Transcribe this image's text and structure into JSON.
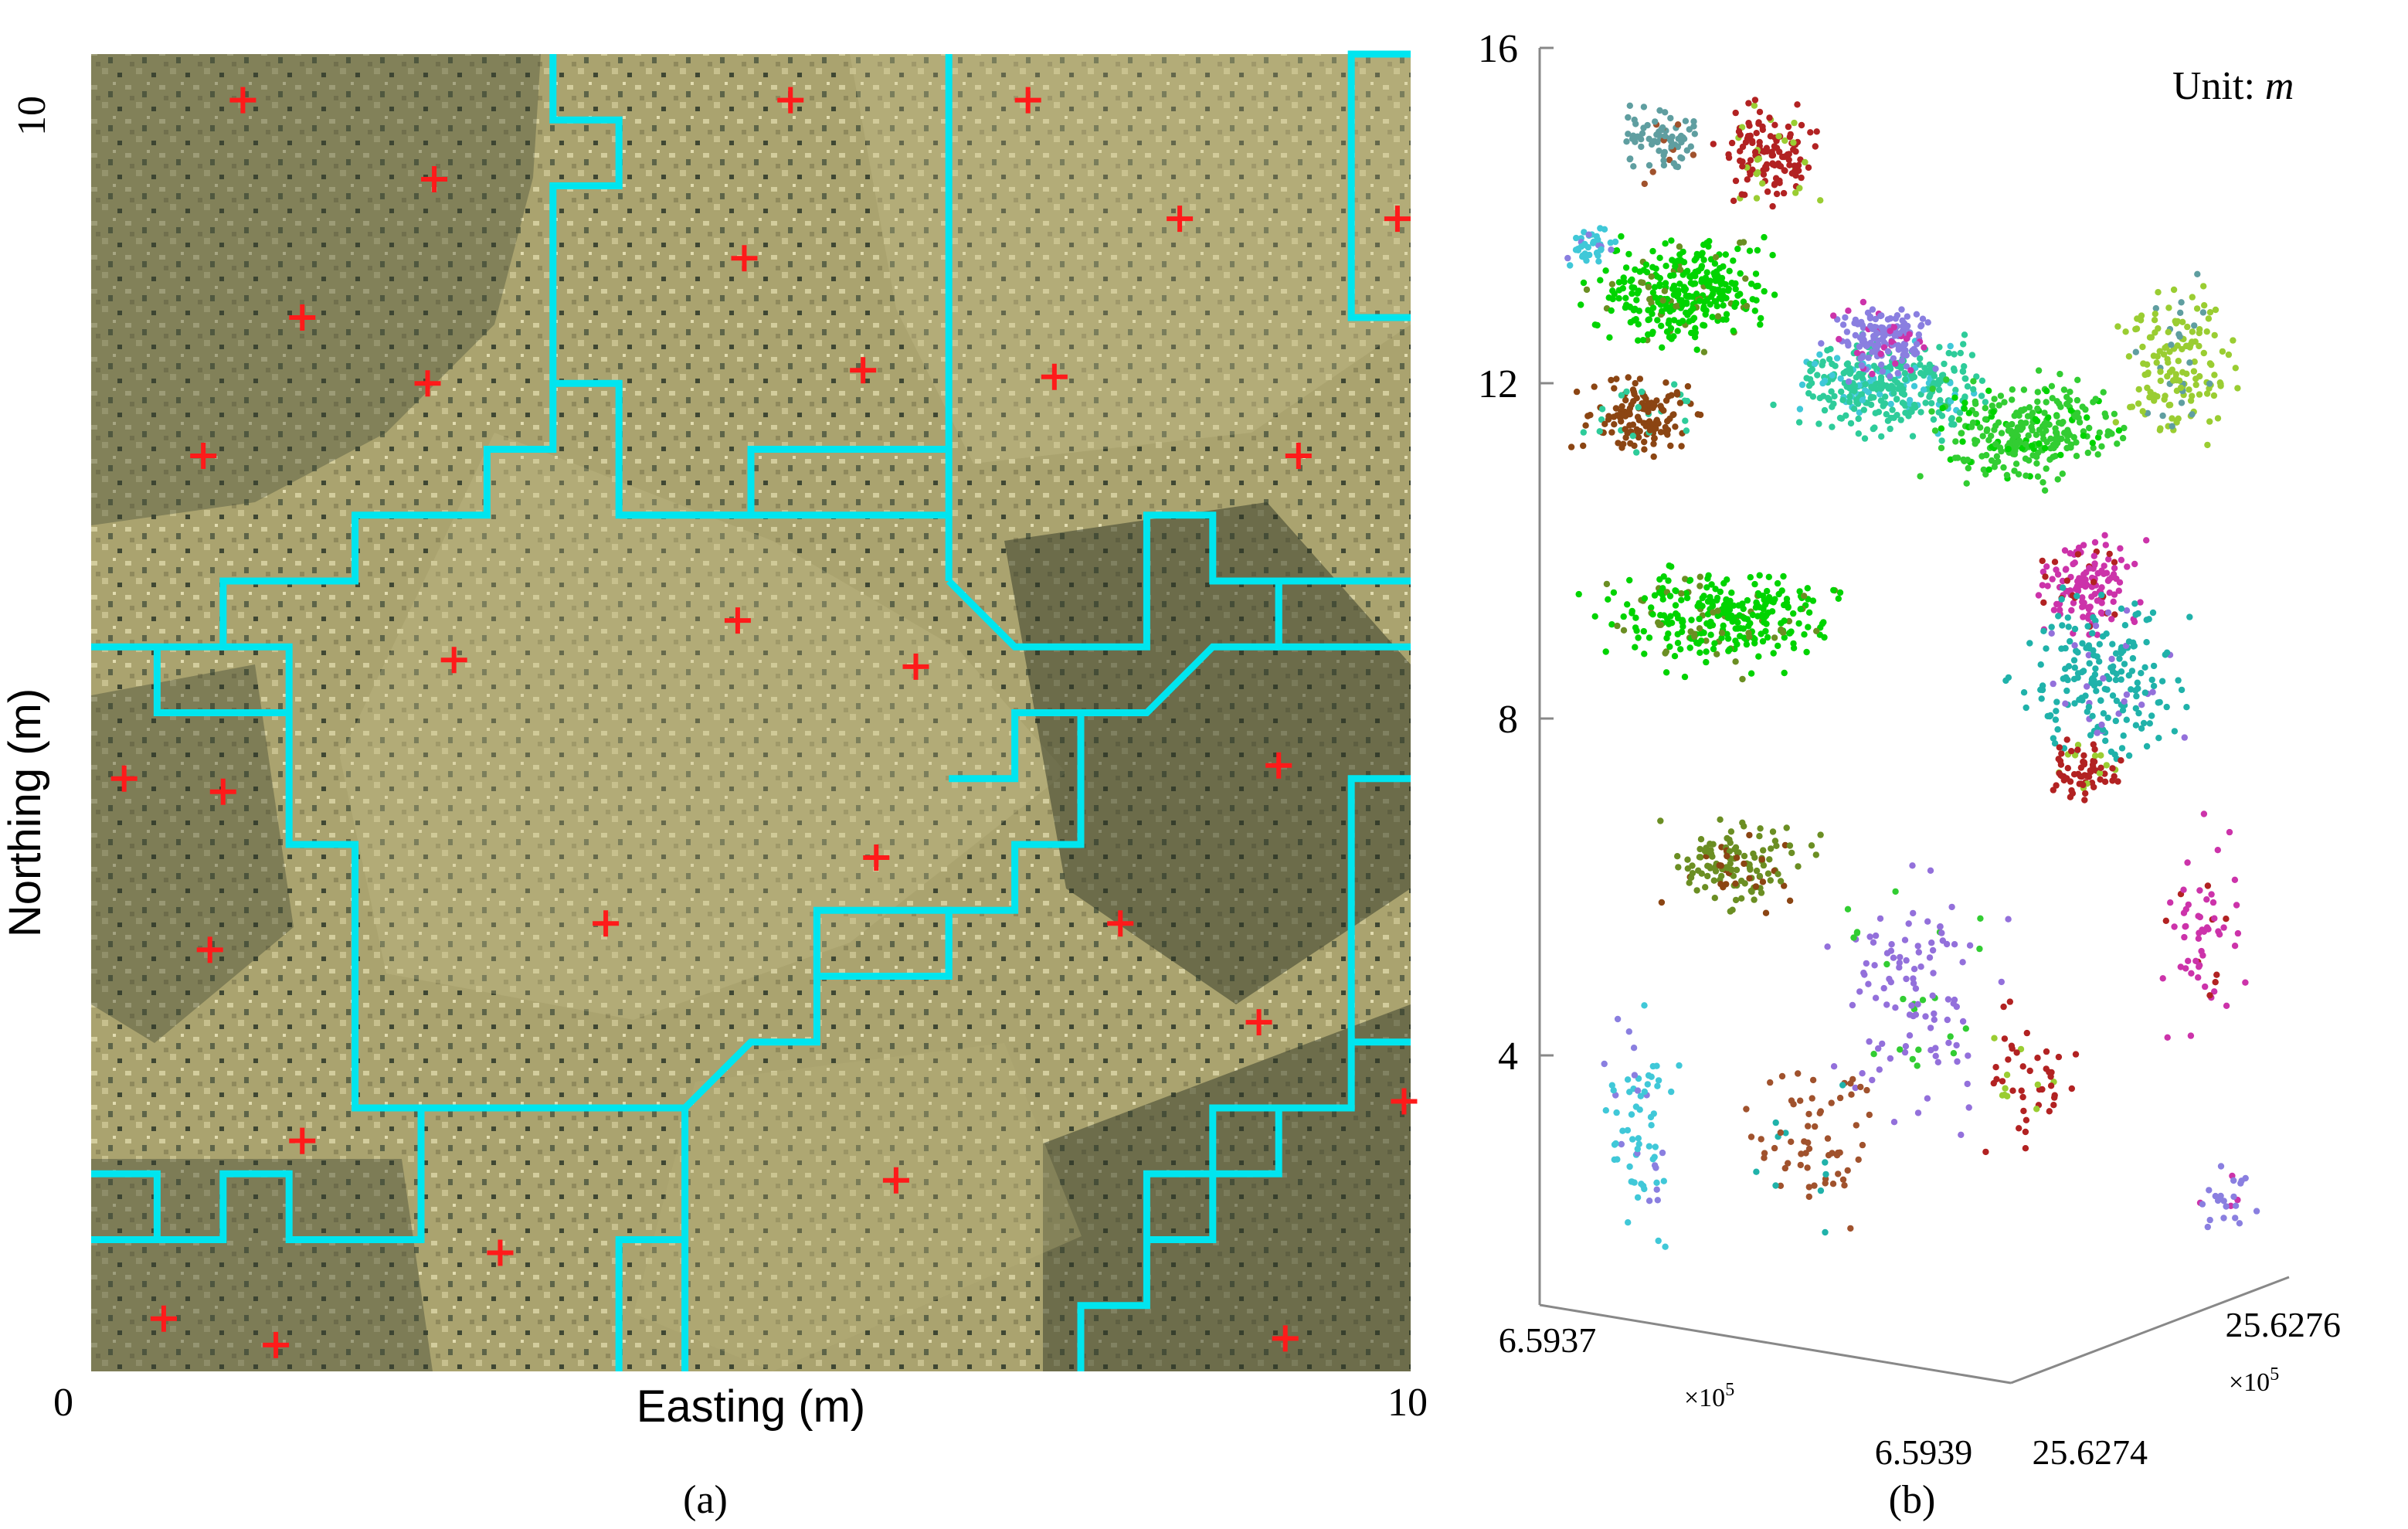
{
  "panel_a": {
    "caption": "(a)",
    "xlabel": "Easting (m)",
    "ylabel": "Northing (m)",
    "x_tick_min": "0",
    "x_tick_max": "10",
    "y_tick_max": "10",
    "marker_color": "#ff1a1a",
    "boundary_color": "#00e5ef",
    "tree_tops": [
      [
        1.15,
        9.65
      ],
      [
        5.3,
        9.65
      ],
      [
        7.1,
        9.65
      ],
      [
        2.6,
        9.05
      ],
      [
        8.25,
        8.75
      ],
      [
        9.9,
        8.75
      ],
      [
        4.95,
        8.45
      ],
      [
        1.6,
        8.0
      ],
      [
        5.85,
        7.6
      ],
      [
        7.3,
        7.55
      ],
      [
        2.55,
        7.5
      ],
      [
        0.85,
        6.95
      ],
      [
        9.15,
        6.95
      ],
      [
        4.9,
        5.7
      ],
      [
        2.75,
        5.4
      ],
      [
        6.25,
        5.35
      ],
      [
        0.25,
        4.5
      ],
      [
        1.0,
        4.4
      ],
      [
        9.0,
        4.6
      ],
      [
        5.95,
        3.9
      ],
      [
        3.9,
        3.4
      ],
      [
        7.8,
        3.4
      ],
      [
        0.9,
        3.2
      ],
      [
        8.85,
        2.65
      ],
      [
        9.95,
        2.05
      ],
      [
        1.6,
        1.75
      ],
      [
        6.1,
        1.45
      ],
      [
        3.1,
        0.9
      ],
      [
        0.55,
        0.4
      ],
      [
        1.4,
        0.2
      ],
      [
        9.05,
        0.25
      ]
    ],
    "segments": [
      [
        [
          3.5,
          10
        ],
        [
          3.5,
          9.5
        ],
        [
          4.0,
          9.5
        ],
        [
          4.0,
          9.0
        ],
        [
          3.5,
          9.0
        ],
        [
          3.5,
          7.5
        ],
        [
          4.0,
          7.5
        ],
        [
          4.0,
          6.5
        ],
        [
          6.5,
          6.5
        ]
      ],
      [
        [
          6.5,
          10
        ],
        [
          6.5,
          9.0
        ],
        [
          6.5,
          6.0
        ]
      ],
      [
        [
          5.0,
          6.5
        ],
        [
          5.0,
          7.0
        ],
        [
          6.5,
          7.0
        ]
      ],
      [
        [
          3.5,
          7.5
        ],
        [
          3.5,
          7.0
        ],
        [
          3.0,
          7.0
        ],
        [
          3.0,
          6.5
        ],
        [
          2.0,
          6.5
        ],
        [
          2.0,
          6.0
        ],
        [
          1.0,
          6.0
        ],
        [
          1.0,
          5.5
        ],
        [
          0,
          5.5
        ]
      ],
      [
        [
          1.0,
          5.5
        ],
        [
          1.5,
          5.5
        ],
        [
          1.5,
          4.0
        ],
        [
          2.0,
          4.0
        ],
        [
          2.0,
          2.0
        ],
        [
          4.5,
          2.0
        ],
        [
          5.0,
          2.5
        ],
        [
          5.5,
          2.5
        ],
        [
          5.5,
          3.5
        ],
        [
          6.5,
          3.5
        ],
        [
          6.5,
          3.0
        ],
        [
          5.5,
          3.0
        ]
      ],
      [
        [
          0.5,
          5.5
        ],
        [
          0.5,
          5.0
        ],
        [
          1.5,
          5.0
        ]
      ],
      [
        [
          10,
          10
        ],
        [
          9.55,
          10
        ],
        [
          9.55,
          8.0
        ],
        [
          10,
          8.0
        ]
      ],
      [
        [
          6.5,
          6.0
        ],
        [
          7.0,
          5.5
        ],
        [
          8.0,
          5.5
        ],
        [
          8.0,
          6.5
        ],
        [
          8.5,
          6.5
        ],
        [
          8.5,
          6.0
        ],
        [
          9.0,
          6.0
        ],
        [
          9.0,
          5.5
        ],
        [
          10,
          5.5
        ]
      ],
      [
        [
          9.0,
          5.5
        ],
        [
          9.0,
          6.0
        ],
        [
          10,
          6.0
        ]
      ],
      [
        [
          5.5,
          3.5
        ],
        [
          5.5,
          3.0
        ],
        [
          6.5,
          3.0
        ],
        [
          6.5,
          3.5
        ],
        [
          7.0,
          3.5
        ],
        [
          7.0,
          4.0
        ],
        [
          7.5,
          4.0
        ],
        [
          7.5,
          4.5
        ],
        [
          7.5,
          5.0
        ],
        [
          8.0,
          5.0
        ],
        [
          8.5,
          5.5
        ],
        [
          9.0,
          5.5
        ]
      ],
      [
        [
          6.5,
          4.5
        ],
        [
          7.0,
          4.5
        ],
        [
          7.0,
          5.0
        ],
        [
          7.5,
          5.0
        ]
      ],
      [
        [
          5.0,
          6.5
        ],
        [
          4.0,
          6.5
        ]
      ],
      [
        [
          0,
          1.5
        ],
        [
          0.5,
          1.5
        ],
        [
          0.5,
          1.0
        ],
        [
          1.0,
          1.0
        ],
        [
          1.0,
          1.5
        ],
        [
          1.5,
          1.5
        ],
        [
          1.5,
          1.0
        ],
        [
          2.5,
          1.0
        ],
        [
          2.5,
          2.0
        ]
      ],
      [
        [
          0.5,
          1.0
        ],
        [
          0,
          1.0
        ]
      ],
      [
        [
          4.5,
          2.0
        ],
        [
          4.5,
          1.0
        ],
        [
          4.0,
          1.0
        ],
        [
          4.0,
          0
        ]
      ],
      [
        [
          4.5,
          1.0
        ],
        [
          4.5,
          0
        ]
      ],
      [
        [
          7.5,
          0
        ],
        [
          7.5,
          0.5
        ],
        [
          8.0,
          0.5
        ],
        [
          8.0,
          1.5
        ],
        [
          8.5,
          1.5
        ],
        [
          8.5,
          2.0
        ],
        [
          9.0,
          2.0
        ],
        [
          9.0,
          1.5
        ],
        [
          8.0,
          1.5
        ]
      ],
      [
        [
          8.0,
          1.0
        ],
        [
          8.5,
          1.0
        ],
        [
          8.5,
          1.5
        ]
      ],
      [
        [
          9.0,
          2.0
        ],
        [
          9.55,
          2.0
        ],
        [
          9.55,
          4.5
        ],
        [
          10,
          4.5
        ]
      ],
      [
        [
          9.55,
          2.5
        ],
        [
          10,
          2.5
        ]
      ]
    ]
  },
  "panel_b": {
    "caption": "(b)",
    "unit_label": "Unit: ",
    "unit_symbol": "m",
    "z_ticks": [
      "4",
      "8",
      "12",
      "16"
    ],
    "x_tick_left": "6.5937",
    "x_tick_right": "6.5939",
    "x_multiplier": "×10",
    "x_exp": "5",
    "y_tick_near": "25.6274",
    "y_tick_far": "25.6276",
    "y_multiplier": "×10",
    "y_exp": "5"
  },
  "chart_data": {
    "type": "scatter",
    "x": "Easting (m)",
    "y": "Northing (m)",
    "xlim": [
      0,
      10
    ],
    "ylim": [
      0,
      10
    ],
    "zlim_panel_b": [
      0,
      16
    ],
    "point_colors": [
      "#00d400",
      "#6b8e23",
      "#8b4513",
      "#2ecc9a",
      "#40c8d8",
      "#8a7fe0",
      "#cc33aa",
      "#b22222",
      "#9acd32",
      "#5f9ea0",
      "#a0522d",
      "#20b2aa",
      "#9370db",
      "#32cd32"
    ]
  }
}
